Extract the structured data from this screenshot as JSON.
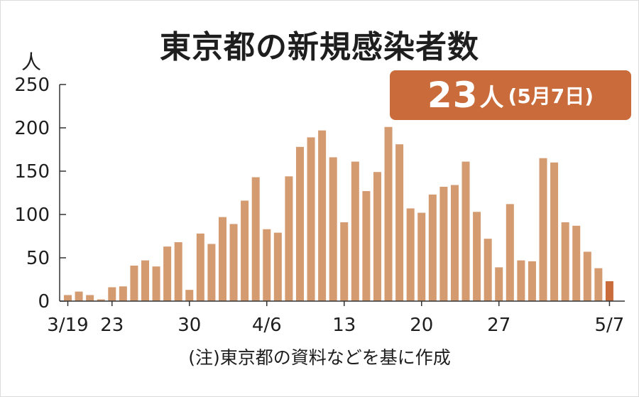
{
  "chart_data": {
    "type": "bar",
    "title": "東京都の新規感染者数",
    "ylabel": "人",
    "ylim": [
      0,
      250
    ],
    "y_ticks": [
      0,
      50,
      100,
      150,
      200,
      250
    ],
    "x_tick_labels": [
      {
        "index": 0,
        "label": "3/19"
      },
      {
        "index": 4,
        "label": "23"
      },
      {
        "index": 11,
        "label": "30"
      },
      {
        "index": 18,
        "label": "4/6"
      },
      {
        "index": 25,
        "label": "13"
      },
      {
        "index": 32,
        "label": "20"
      },
      {
        "index": 39,
        "label": "27"
      },
      {
        "index": 49,
        "label": "5/7"
      }
    ],
    "categories": [
      "3/19",
      "3/20",
      "3/21",
      "3/22",
      "3/23",
      "3/24",
      "3/25",
      "3/26",
      "3/27",
      "3/28",
      "3/29",
      "3/30",
      "3/31",
      "4/1",
      "4/2",
      "4/3",
      "4/4",
      "4/5",
      "4/6",
      "4/7",
      "4/8",
      "4/9",
      "4/10",
      "4/11",
      "4/12",
      "4/13",
      "4/14",
      "4/15",
      "4/16",
      "4/17",
      "4/18",
      "4/19",
      "4/20",
      "4/21",
      "4/22",
      "4/23",
      "4/24",
      "4/25",
      "4/26",
      "4/27",
      "4/28",
      "4/29",
      "4/30",
      "5/1",
      "5/2",
      "5/3",
      "5/4",
      "5/5",
      "5/6",
      "5/7"
    ],
    "values": [
      7,
      11,
      7,
      2,
      16,
      17,
      41,
      47,
      40,
      63,
      68,
      13,
      78,
      66,
      97,
      89,
      116,
      143,
      83,
      79,
      144,
      178,
      189,
      197,
      166,
      91,
      161,
      127,
      149,
      201,
      181,
      107,
      102,
      123,
      132,
      134,
      161,
      103,
      72,
      39,
      112,
      47,
      46,
      165,
      160,
      91,
      87,
      57,
      38,
      23
    ],
    "colors": {
      "bar": "#d49a70",
      "latest_bar": "#c96b3a"
    },
    "grid": false,
    "legend": "none"
  },
  "callout": {
    "value": "23",
    "unit": "人",
    "date": "(5月7日)"
  },
  "source_note": "(注)東京都の資料などを基に作成"
}
